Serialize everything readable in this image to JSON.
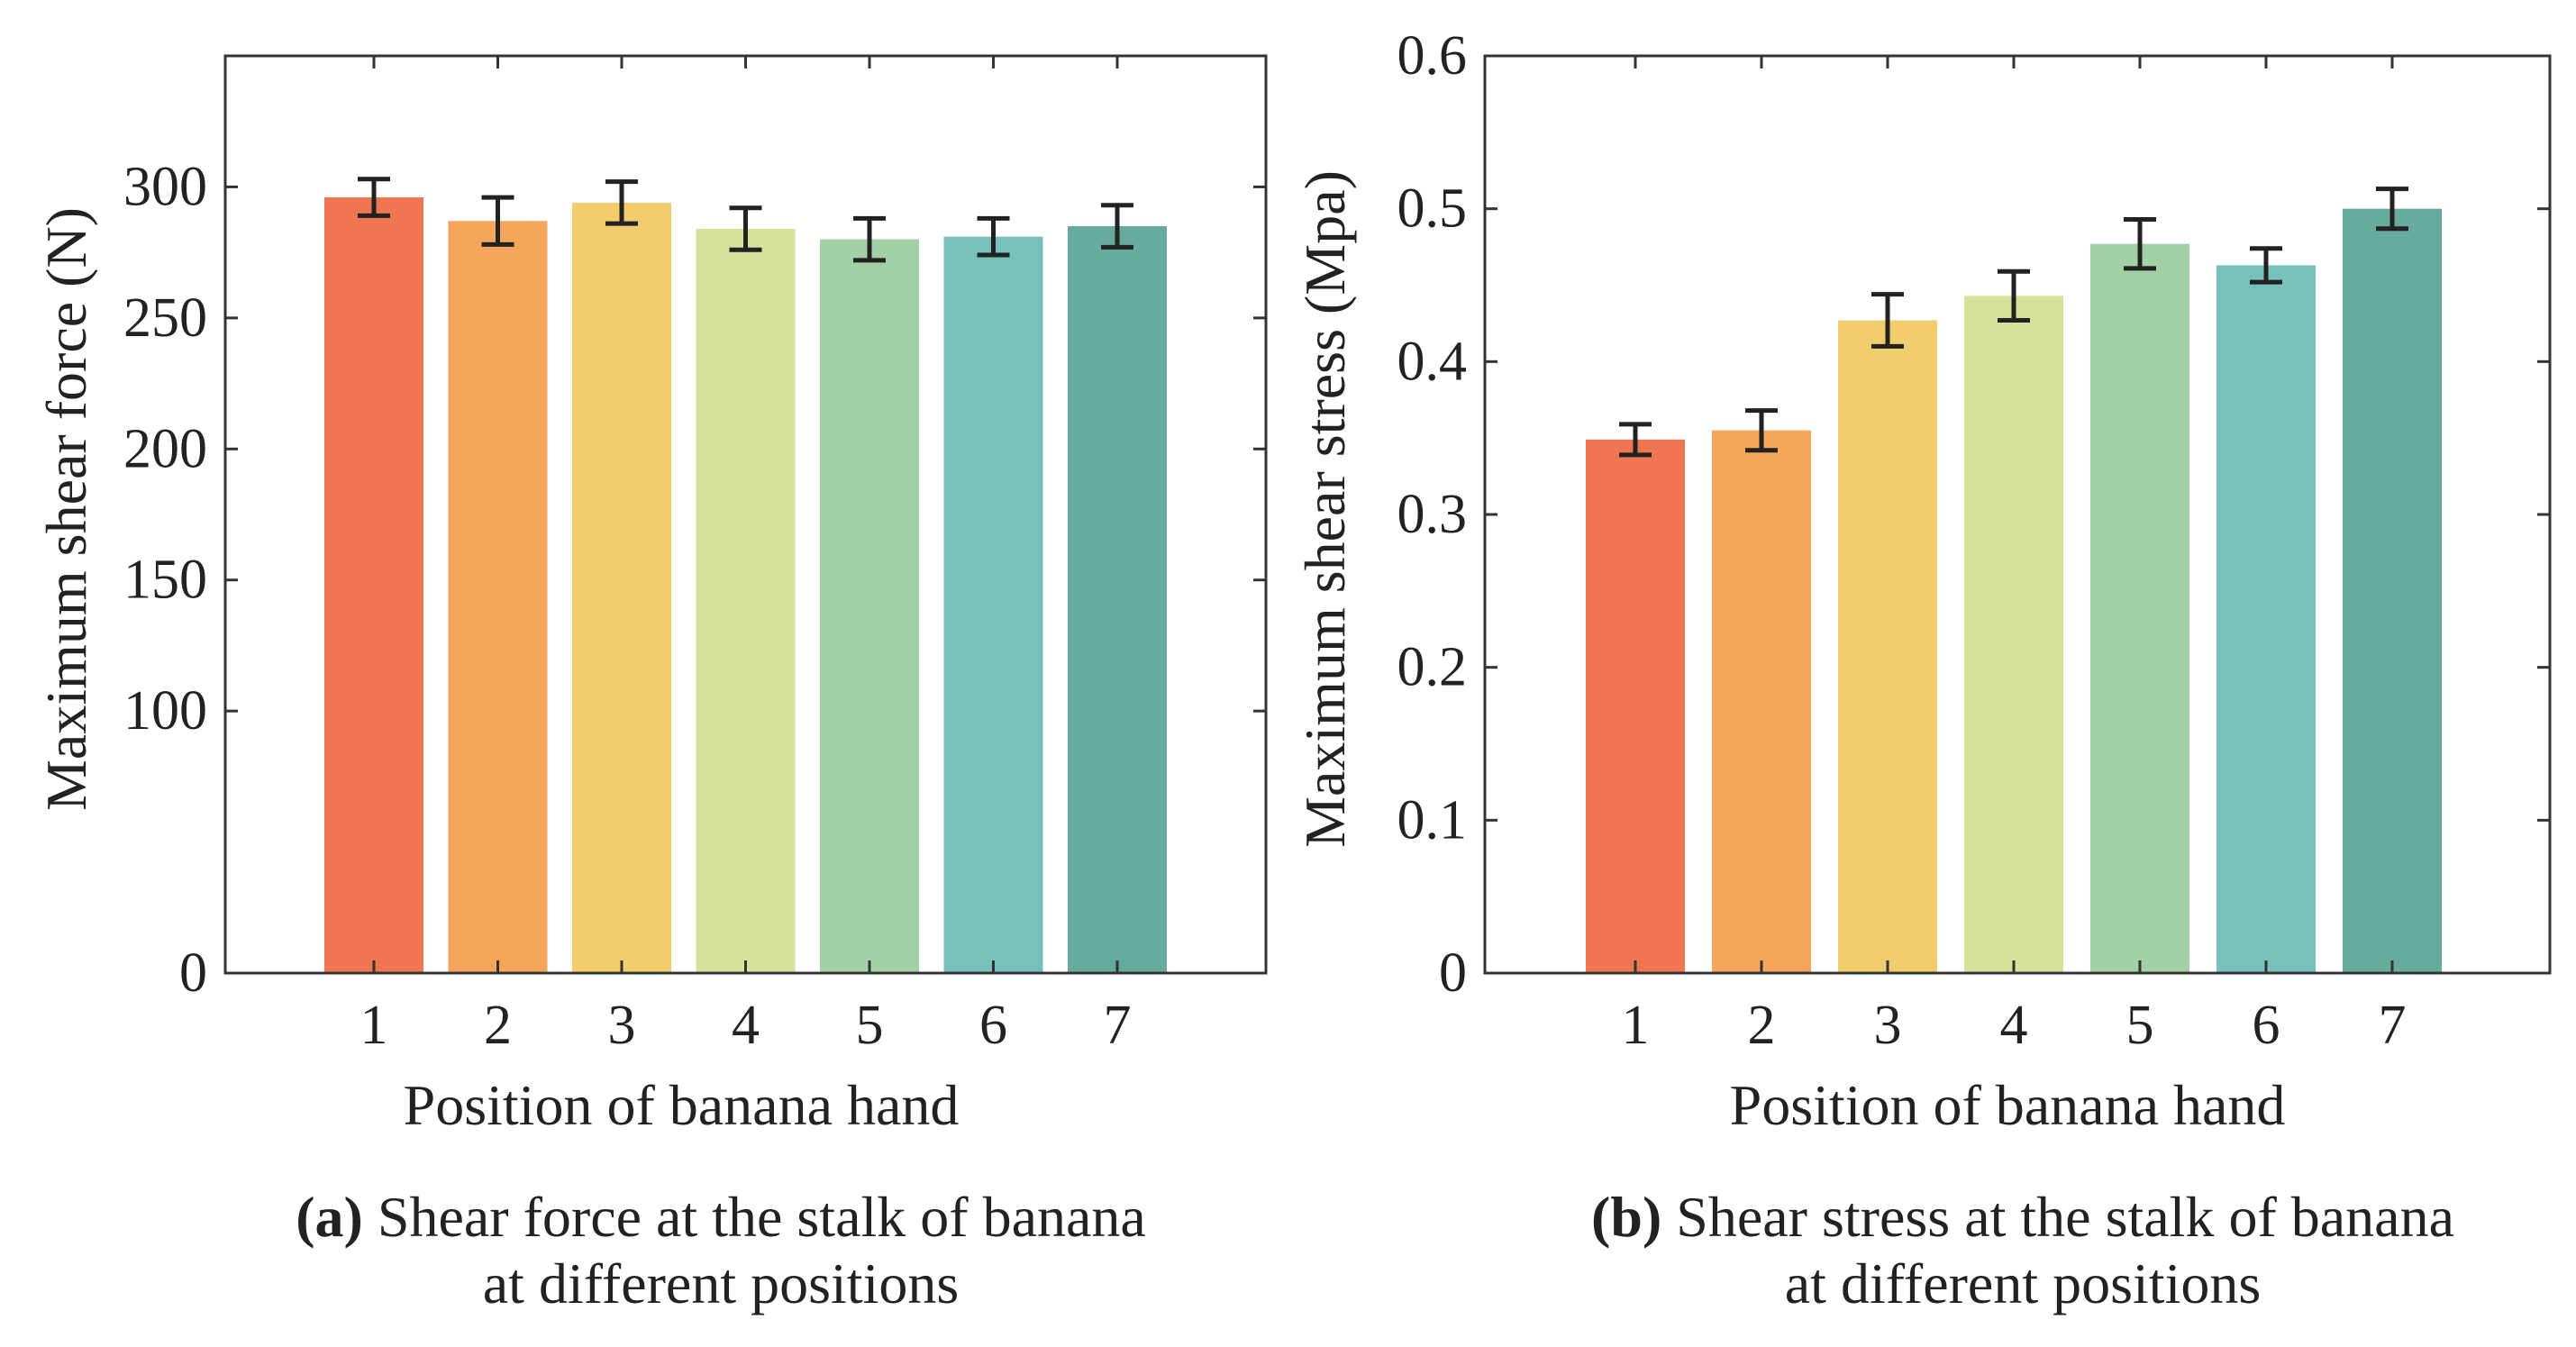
{
  "chart_data": [
    {
      "type": "bar",
      "panel_tag": "(a)",
      "caption_line1": "Shear force at the stalk of banana",
      "caption_line2": "at different positions",
      "xlabel": "Position of banana hand",
      "ylabel": "Maximum shear force  (N)",
      "categories": [
        "1",
        "2",
        "3",
        "4",
        "5",
        "6",
        "7"
      ],
      "values": [
        296,
        287,
        294,
        284,
        280,
        281,
        285
      ],
      "errors": [
        7,
        9,
        8,
        8,
        8,
        7,
        8
      ],
      "ylim": [
        0,
        350
      ],
      "yticks": [
        0,
        100,
        150,
        200,
        250,
        300
      ],
      "ytick_labels": [
        "0",
        "100",
        "150",
        "200",
        "250",
        "300"
      ],
      "grid": false,
      "colors": [
        "#ef7650",
        "#f5a65a",
        "#f2cd6e",
        "#d5e29a",
        "#a3d1a6",
        "#76c1bb",
        "#66ab9c"
      ]
    },
    {
      "type": "bar",
      "panel_tag": "(b)",
      "caption_line1": "Shear stress at the stalk of banana",
      "caption_line2": "at different positions",
      "xlabel": "Position of banana hand",
      "ylabel": "Maximum shear stress (Mpa)",
      "categories": [
        "1",
        "2",
        "3",
        "4",
        "5",
        "6",
        "7"
      ],
      "values": [
        0.349,
        0.355,
        0.427,
        0.443,
        0.477,
        0.463,
        0.5
      ],
      "errors": [
        0.01,
        0.013,
        0.017,
        0.016,
        0.016,
        0.011,
        0.013
      ],
      "ylim": [
        0,
        0.6
      ],
      "yticks": [
        0,
        0.1,
        0.2,
        0.3,
        0.4,
        0.5,
        0.6
      ],
      "ytick_labels": [
        "0",
        "0.1",
        "0.2",
        "0.3",
        "0.4",
        "0.5",
        "0.6"
      ],
      "grid": false,
      "colors": [
        "#ef7650",
        "#f5a65a",
        "#f2cd6e",
        "#d5e29a",
        "#a3d1a6",
        "#76c1bb",
        "#66ab9c"
      ]
    }
  ]
}
